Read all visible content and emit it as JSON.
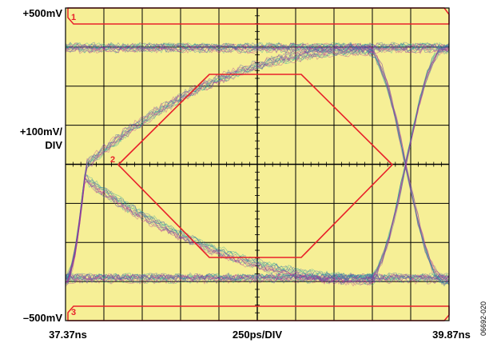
{
  "y_labels": {
    "top": "+500mV",
    "scale_line1": "+100mV/",
    "scale_line2": "DIV",
    "bottom": "–500mV"
  },
  "x_labels": {
    "left": "37.37ns",
    "center": "250ps/DIV",
    "right": "39.87ns"
  },
  "mask_labels": {
    "region1": "1",
    "region2": "2",
    "region3": "3"
  },
  "figure_id": "06692-020",
  "colors": {
    "screen": "#f6ef96",
    "grid": "#000000",
    "mask": "#e8202a",
    "trace_blue": "#3a4fb0",
    "trace_teal": "#1a9e9e",
    "trace_magenta": "#b02d9a"
  }
}
